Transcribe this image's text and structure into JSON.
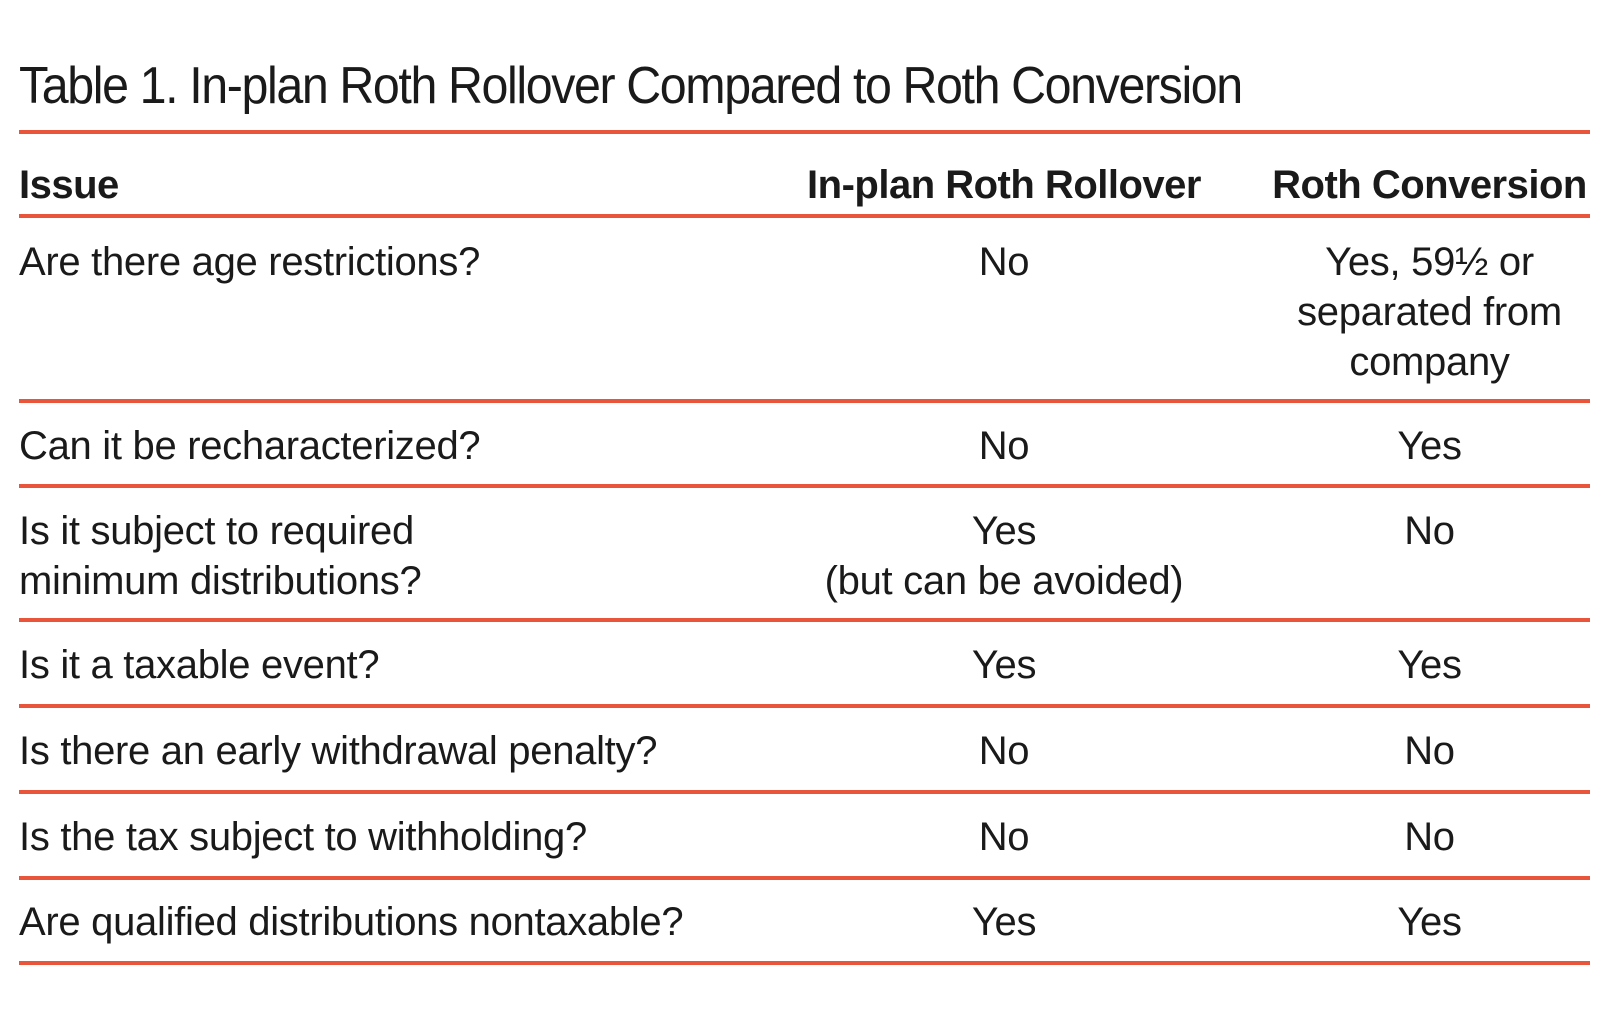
{
  "title": "Table 1. In-plan Roth Rollover Compared to Roth Conversion",
  "accent_color": "#e8553a",
  "columns": [
    "Issue",
    "In-plan Roth Rollover",
    "Roth Conversion"
  ],
  "rows": [
    {
      "issue": [
        "Are there age restrictions?"
      ],
      "in_plan": [
        "No"
      ],
      "conversion": [
        "Yes, 59½ or",
        "separated from",
        "company"
      ]
    },
    {
      "issue": [
        "Can it be recharacterized?"
      ],
      "in_plan": [
        "No"
      ],
      "conversion": [
        "Yes"
      ]
    },
    {
      "issue": [
        "Is it subject to required",
        "minimum distributions?"
      ],
      "in_plan": [
        "Yes",
        "(but can be avoided)"
      ],
      "conversion": [
        "No"
      ]
    },
    {
      "issue": [
        "Is it a taxable event?"
      ],
      "in_plan": [
        "Yes"
      ],
      "conversion": [
        "Yes"
      ]
    },
    {
      "issue": [
        "Is there an early withdrawal penalty?"
      ],
      "in_plan": [
        "No"
      ],
      "conversion": [
        "No"
      ]
    },
    {
      "issue": [
        "Is the tax subject to withholding?"
      ],
      "in_plan": [
        "No"
      ],
      "conversion": [
        "No"
      ]
    },
    {
      "issue": [
        "Are qualified distributions nontaxable?"
      ],
      "in_plan": [
        "Yes"
      ],
      "conversion": [
        "Yes"
      ]
    }
  ]
}
